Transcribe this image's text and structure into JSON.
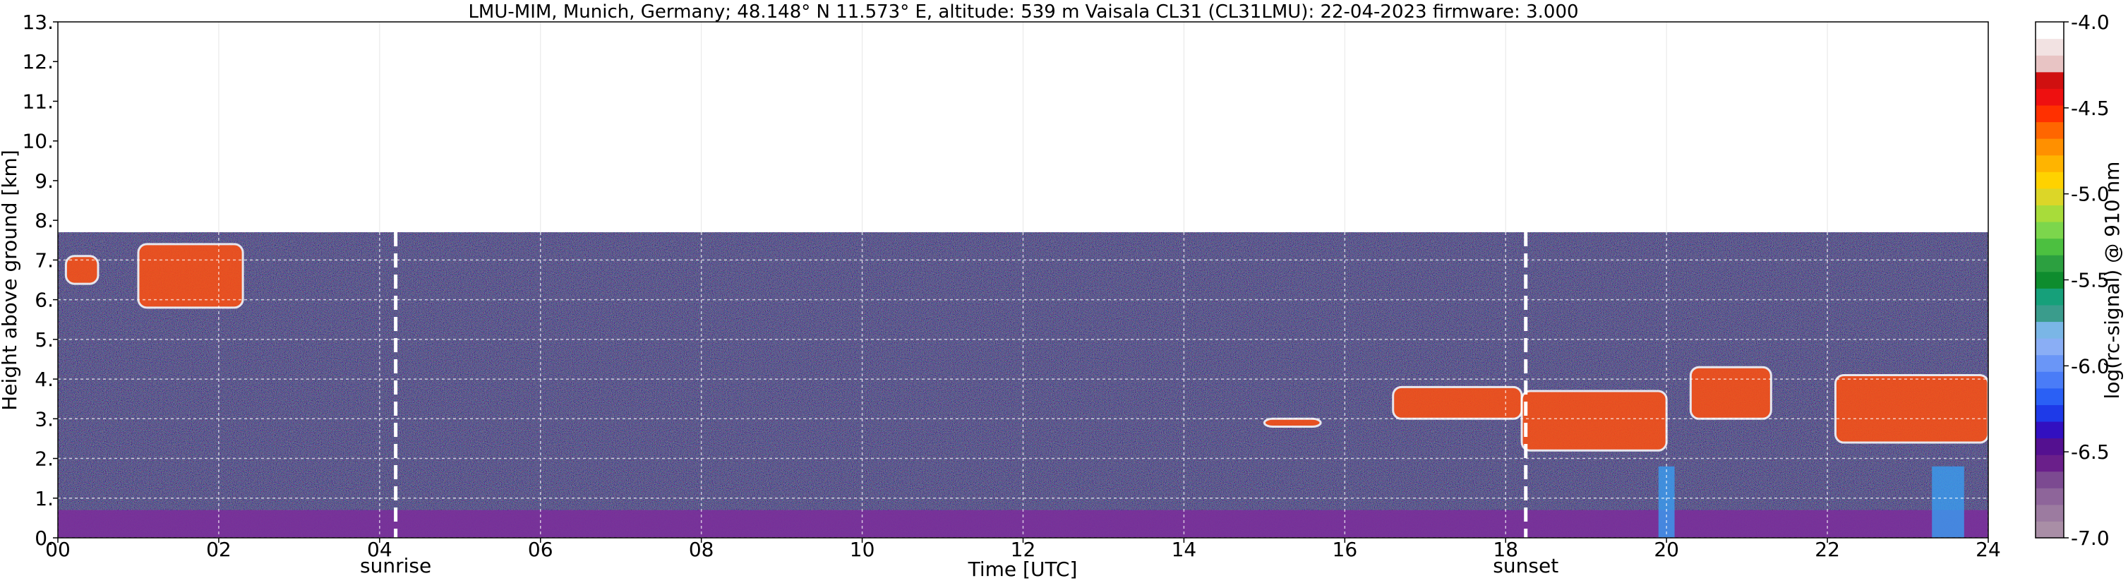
{
  "chart_data": {
    "type": "heatmap",
    "title": "LMU-MIM, Munich, Germany; 48.148° N 11.573° E, altitude: 539 m    Vaisala CL31 (CL31LMU): 22-04-2023    firmware: 3.000",
    "xlabel": "Time [UTC]",
    "ylabel": "Height above ground [km]",
    "xlim": [
      0,
      24
    ],
    "ylim": [
      0,
      13
    ],
    "x_ticks": [
      0,
      2,
      4,
      6,
      8,
      10,
      12,
      14,
      16,
      18,
      20,
      22,
      24
    ],
    "x_tick_labels": [
      "00",
      "02",
      "04",
      "06",
      "08",
      "10",
      "12",
      "14",
      "16",
      "18",
      "20",
      "22",
      "24"
    ],
    "y_ticks": [
      0,
      1,
      2,
      3,
      4,
      5,
      6,
      7,
      8,
      9,
      10,
      11,
      12,
      13
    ],
    "y_tick_labels": [
      "0.",
      "1.",
      "2.",
      "3.",
      "4.",
      "5.",
      "6.",
      "7.",
      "8.",
      "9.",
      "10.",
      "11.",
      "12.",
      "13."
    ],
    "grid": true,
    "data_top_km": 7.7,
    "sunrise": {
      "x": 4.2,
      "label": "sunrise"
    },
    "sunset": {
      "x": 18.25,
      "label": "sunset"
    },
    "colorbar": {
      "label": "log(rc-signal) @ 910 nm",
      "range": [
        -7.0,
        -4.0
      ],
      "ticks": [
        -7.0,
        -6.5,
        -6.0,
        -5.5,
        -5.0,
        -4.5,
        -4.0
      ],
      "tick_labels": [
        "-7.0",
        "-6.5",
        "-6.0",
        "-5.5",
        "-5.0",
        "-4.5",
        "-4.0"
      ],
      "colors": [
        "#a98ea6",
        "#9c7ba0",
        "#8e659a",
        "#7c4a91",
        "#6a1f8a",
        "#541090",
        "#3210c0",
        "#1e3ae8",
        "#2a60f5",
        "#4a7cf7",
        "#6a96f7",
        "#8aaef5",
        "#7ab6e6",
        "#3a9c8c",
        "#16a07a",
        "#0e8c2e",
        "#2ca040",
        "#4cc040",
        "#7cd64c",
        "#a8dc3a",
        "#dcd628",
        "#ffd200",
        "#ffb400",
        "#ff9000",
        "#ff6600",
        "#ff3000",
        "#ee1010",
        "#d01010",
        "#e8c4c4",
        "#f2e2e2",
        "#ffffff"
      ]
    },
    "layers": [
      {
        "kind": "boundary_layer",
        "x": [
          0,
          24
        ],
        "y": [
          0,
          0.7
        ]
      },
      {
        "kind": "cloud",
        "x": [
          0.1,
          0.5
        ],
        "y": [
          6.4,
          7.1
        ]
      },
      {
        "kind": "cloud",
        "x": [
          1.0,
          2.3
        ],
        "y": [
          5.8,
          7.4
        ]
      },
      {
        "kind": "cloud",
        "x": [
          15.0,
          15.7
        ],
        "y": [
          2.8,
          3.0
        ]
      },
      {
        "kind": "cloud",
        "x": [
          16.6,
          18.2
        ],
        "y": [
          3.0,
          3.8
        ]
      },
      {
        "kind": "cloud",
        "x": [
          18.2,
          20.0
        ],
        "y": [
          2.2,
          3.7
        ]
      },
      {
        "kind": "cloud",
        "x": [
          20.3,
          21.3
        ],
        "y": [
          3.0,
          4.3
        ]
      },
      {
        "kind": "cloud",
        "x": [
          22.1,
          24.0
        ],
        "y": [
          2.4,
          4.1
        ]
      },
      {
        "kind": "precipitation",
        "x": [
          19.9,
          20.1
        ],
        "y": [
          0,
          1.8
        ]
      },
      {
        "kind": "precipitation",
        "x": [
          23.3,
          23.7
        ],
        "y": [
          0,
          1.8
        ]
      }
    ]
  }
}
